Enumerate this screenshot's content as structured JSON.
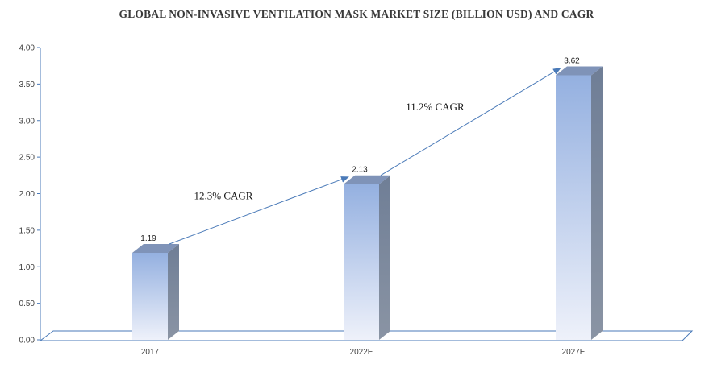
{
  "chart_data": {
    "type": "bar",
    "title": "GLOBAL NON-INVASIVE VENTILATION MASK MARKET SIZE (BILLION USD) AND CAGR",
    "xlabel": "",
    "ylabel": "",
    "categories": [
      "2017",
      "2022E",
      "2027E"
    ],
    "values": [
      1.19,
      2.13,
      3.62
    ],
    "data_labels": [
      "1.19",
      "2.13",
      "3.62"
    ],
    "ylim": [
      0,
      4
    ],
    "yticks": [
      "0.00",
      "0.50",
      "1.00",
      "1.50",
      "2.00",
      "2.50",
      "3.00",
      "3.50",
      "4.00"
    ],
    "grid": false,
    "legend": "none",
    "annotations": [
      {
        "text": "12.3% CAGR",
        "from": "2017",
        "to": "2022E"
      },
      {
        "text": "11.2% CAGR",
        "from": "2022E",
        "to": "2027E"
      }
    ],
    "colors": {
      "bar_top": "#94b0e0",
      "bar_bottom": "#eef1fa",
      "bar_side": "#6f7e96",
      "bar_cap": "#7f93b8",
      "arrow": "#4a7ab8",
      "axis": "#4a7ab8",
      "floor": "#4a7ab8"
    },
    "style": "3d-column"
  }
}
